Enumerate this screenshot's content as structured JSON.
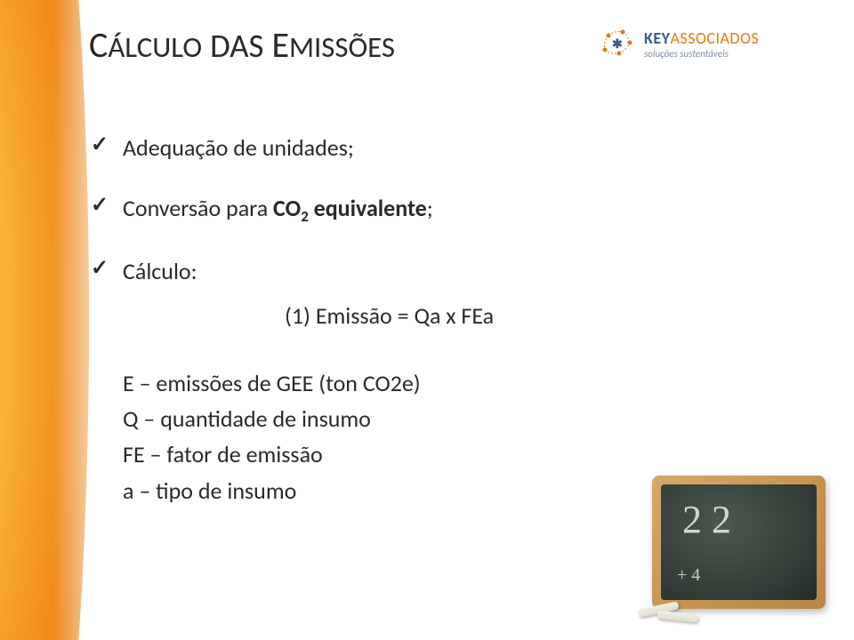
{
  "title_html": "C<span style='font-size:0.82em'>ÁLCULO</span> <span style='font-size:0.92em'>DAS</span> E<span style='font-size:0.82em'>MISSÕES</span>",
  "logo": {
    "brand_key": "KEY",
    "brand_assoc": "ASSOCIADOS",
    "tagline": "soluções sustentáveis",
    "accent_color": "#e8770f",
    "primary_color": "#3a5a8a"
  },
  "bullets": [
    {
      "text": "Adequação de unidades;"
    },
    {
      "text_html": "Conversão para <b>CO<span class='sub2'>2</span> equivalente</b>;"
    },
    {
      "text": "Cálculo:"
    }
  ],
  "formula": "(1) Emissão = Qa x FEa",
  "definitions": [
    "E – emissões de GEE (ton CO2e)",
    "Q – quantidade de insumo",
    "FE – fator de emissão",
    "a – tipo de insumo"
  ],
  "chalkboard": {
    "line1": "2 2",
    "line2": "+ 4",
    "frame_color": "#c89552",
    "board_color": "#323b35",
    "chalk_color": "#e8e4d8"
  },
  "side_gradient_colors": [
    "#f9b233",
    "#e8770f"
  ]
}
